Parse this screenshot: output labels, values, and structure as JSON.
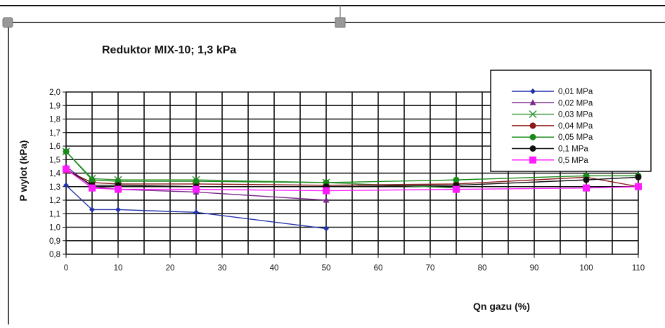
{
  "chart_data": {
    "type": "line",
    "title": "Reduktor MIX-10;  1,3 kPa",
    "xlabel": "Qn gazu (%)",
    "ylabel": "P wylot  (kPa)",
    "xlim": [
      0,
      110
    ],
    "ylim": [
      0.8,
      2.0
    ],
    "xticks": [
      0,
      10,
      20,
      30,
      40,
      50,
      60,
      70,
      80,
      90,
      100,
      110
    ],
    "yticks": [
      "0,8",
      "0,9",
      "1,0",
      "1,1",
      "1,2",
      "1,3",
      "1,4",
      "1,5",
      "1,6",
      "1,7",
      "1,8",
      "1,9",
      "2,0"
    ],
    "grid": true,
    "legend_position": "top-right",
    "series": [
      {
        "name": "0,01 MPa",
        "color": "#2233aa",
        "marker": "diamond",
        "x": [
          0,
          5,
          10,
          25,
          50
        ],
        "y": [
          1.31,
          1.13,
          1.13,
          1.11,
          0.99
        ]
      },
      {
        "name": "0,02 MPa",
        "color": "#7b2a8c",
        "marker": "triangle",
        "x": [
          0,
          5,
          10,
          25,
          50
        ],
        "y": [
          1.45,
          1.3,
          1.28,
          1.26,
          1.2
        ]
      },
      {
        "name": "0,03 MPa",
        "color": "#3f9a3f",
        "marker": "x",
        "x": [
          0,
          5,
          10,
          25,
          50,
          75
        ],
        "y": [
          1.56,
          1.36,
          1.35,
          1.35,
          1.33,
          1.29
        ]
      },
      {
        "name": "0,04 MPa",
        "color": "#8b1a1a",
        "marker": "circle",
        "x": [
          0,
          5,
          10,
          25,
          50,
          75,
          100,
          110
        ],
        "y": [
          1.42,
          1.33,
          1.32,
          1.32,
          1.31,
          1.32,
          1.37,
          1.3
        ]
      },
      {
        "name": "0,05 MPa",
        "color": "#1a8a1a",
        "marker": "circle",
        "x": [
          0,
          5,
          10,
          25,
          50,
          75,
          100,
          110
        ],
        "y": [
          1.56,
          1.35,
          1.34,
          1.34,
          1.33,
          1.35,
          1.38,
          1.38
        ]
      },
      {
        "name": "0,1 MPa",
        "color": "#111111",
        "marker": "circle",
        "x": [
          0,
          5,
          10,
          25,
          50,
          75,
          100,
          110
        ],
        "y": [
          1.43,
          1.31,
          1.31,
          1.3,
          1.3,
          1.31,
          1.35,
          1.37
        ]
      },
      {
        "name": "0,5 MPa",
        "color": "#ff1aff",
        "marker": "square",
        "x": [
          0,
          5,
          10,
          25,
          50,
          75,
          100,
          110
        ],
        "y": [
          1.43,
          1.29,
          1.28,
          1.28,
          1.27,
          1.28,
          1.29,
          1.3
        ]
      }
    ]
  }
}
